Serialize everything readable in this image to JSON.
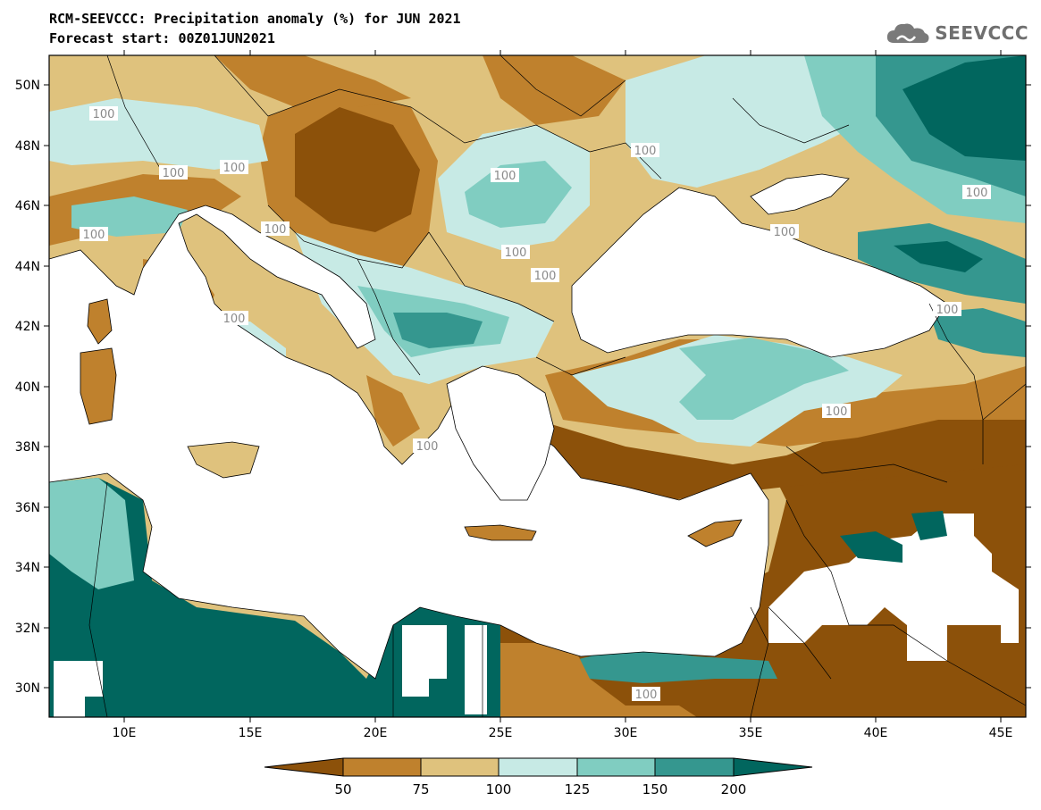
{
  "header": {
    "title_line1": "RCM-SEEVCCC: Precipitation anomaly (%) for JUN 2021",
    "title_line2": "Forecast start: 00Z01JUN2021"
  },
  "logo": {
    "text": "SEEVCCC",
    "icon": "cloud-logo-icon"
  },
  "map": {
    "lon_range": [
      7,
      46
    ],
    "lat_range": [
      29,
      51
    ],
    "x_ticks": [
      "10E",
      "15E",
      "20E",
      "25E",
      "30E",
      "35E",
      "40E",
      "45E"
    ],
    "y_ticks": [
      "50N",
      "48N",
      "46N",
      "44N",
      "42N",
      "40N",
      "38N",
      "36N",
      "34N",
      "32N",
      "30N"
    ],
    "contour_labels": [
      "100",
      "100",
      "100",
      "100",
      "100",
      "100",
      "100",
      "100",
      "100",
      "100",
      "100",
      "100",
      "100",
      "100",
      "100",
      "100"
    ],
    "colors": {
      "very_dry": "#8c510a",
      "dry": "#bf812d",
      "slightly_dry": "#dfc27d",
      "slightly_wet": "#c7eae5",
      "wet": "#80cdc1",
      "very_wet": "#35978f",
      "extreme_wet": "#01665e",
      "sea": "#ffffff"
    }
  },
  "colorbar": {
    "labels": [
      "50",
      "75",
      "100",
      "125",
      "150",
      "200"
    ],
    "colors": [
      "#8c510a",
      "#bf812d",
      "#dfc27d",
      "#c7eae5",
      "#80cdc1",
      "#35978f",
      "#01665e"
    ]
  }
}
